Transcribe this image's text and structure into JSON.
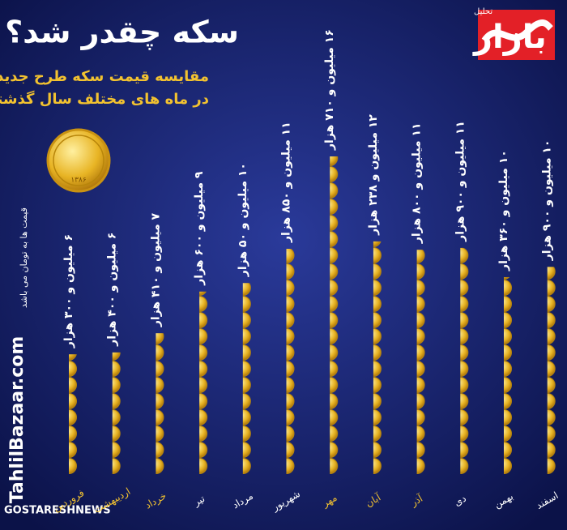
{
  "chart_data": {
    "type": "pictograph",
    "title": "سکه چقدر شد؟",
    "subtitle": [
      "مقایسه قیمت سکه طرح جدید",
      "در ماه های مختلف سال گذشته"
    ],
    "note": "قیمت ها به تومان می باشد",
    "brand": "بازار",
    "brand_tag": "تحلیل",
    "watermark": "TahlilBazaar.com",
    "source": "GOSTARESHNEWS",
    "coin_label": "۱۳۸۶",
    "categories": [
      "فروردین",
      "اردیبهشت",
      "خرداد",
      "تیر",
      "مرداد",
      "شهریور",
      "مهر",
      "آبان",
      "آذر",
      "دی",
      "بهمن",
      "اسفند"
    ],
    "category_colors": [
      "#f2c230",
      "#f2c230",
      "#f2c230",
      "#ffffff",
      "#ffffff",
      "#ffffff",
      "#f2c230",
      "#f2c230",
      "#f2c230",
      "#ffffff",
      "#ffffff",
      "#ffffff"
    ],
    "values": [
      6300000,
      6400000,
      7410000,
      9600000,
      10050000,
      11850000,
      16710000,
      12238000,
      11800000,
      11900000,
      10360000,
      10900000
    ],
    "value_labels": [
      "۶ میلیون و ۳۰۰ هزار",
      "۶ میلیون و ۴۰۰ هزار",
      "۷ میلیون و ۴۱۰ هزار",
      "۹ میلیون و ۶۰۰ هزار",
      "۱۰ میلیون و ۵۰ هزار",
      "۱۱ میلیون و ۸۵۰ هزار",
      "۱۶ میلیون و ۷۱۰ هزار",
      "۱۲ میلیون و ۲۳۸ هزار",
      "۱۱ میلیون و ۸۰۰ هزار",
      "۱۱ میلیون و ۹۰۰ هزار",
      "۱۰ میلیون و ۳۶۰ هزار",
      "۱۰ میلیون و ۹۰۰ هزار"
    ],
    "color": "#e8b424"
  }
}
